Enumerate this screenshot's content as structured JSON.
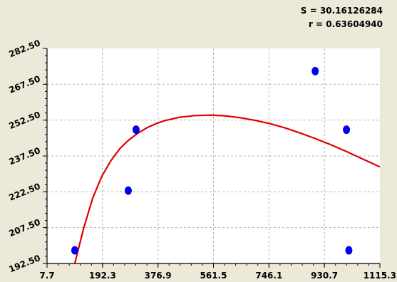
{
  "stats": {
    "s_text": "S = 30.16126284",
    "r_text": "r = 0.63604940"
  },
  "colors": {
    "background": "#ece9d8",
    "plot_area": "#ffffff",
    "points": "#0000ee",
    "curve": "#e00000",
    "grid": "#b0b0b0"
  },
  "chart_data": {
    "type": "scatter",
    "title": "",
    "xlabel": "",
    "ylabel": "",
    "xlim": [
      7.7,
      1115.3
    ],
    "ylim": [
      192.5,
      282.5
    ],
    "x_ticks": [
      7.7,
      192.3,
      376.9,
      561.5,
      746.1,
      930.7,
      1115.3
    ],
    "x_tick_labels": [
      "7.7",
      "192.3",
      "376.9",
      "561.5",
      "746.1",
      "930.7",
      "1115.3"
    ],
    "y_ticks": [
      192.5,
      207.5,
      222.5,
      237.5,
      252.5,
      267.5,
      282.5
    ],
    "y_tick_labels": [
      "192.50",
      "207.50",
      "222.50",
      "237.50",
      "252.50",
      "267.50",
      "282.50"
    ],
    "grid": true,
    "series": [
      {
        "kind": "points",
        "x": [
          100,
          278,
          304,
          900,
          1004,
          1012
        ],
        "y": [
          198,
          223,
          248.5,
          273,
          248.5,
          198
        ]
      },
      {
        "kind": "fit-curve",
        "x": [
          100,
          130,
          160,
          190,
          220,
          250,
          280,
          310,
          340,
          370,
          400,
          450,
          500,
          550,
          600,
          650,
          700,
          750,
          800,
          850,
          900,
          950,
          1000,
          1050,
          1100,
          1115.3
        ],
        "y": [
          192.5,
          207.5,
          220,
          229,
          235.5,
          240.6,
          244.2,
          247,
          249.3,
          251,
          252.3,
          253.7,
          254.4,
          254.6,
          254.3,
          253.5,
          252.4,
          251,
          249.2,
          247.1,
          244.8,
          242.3,
          239.6,
          236.7,
          233.8,
          232.9
        ]
      }
    ]
  }
}
